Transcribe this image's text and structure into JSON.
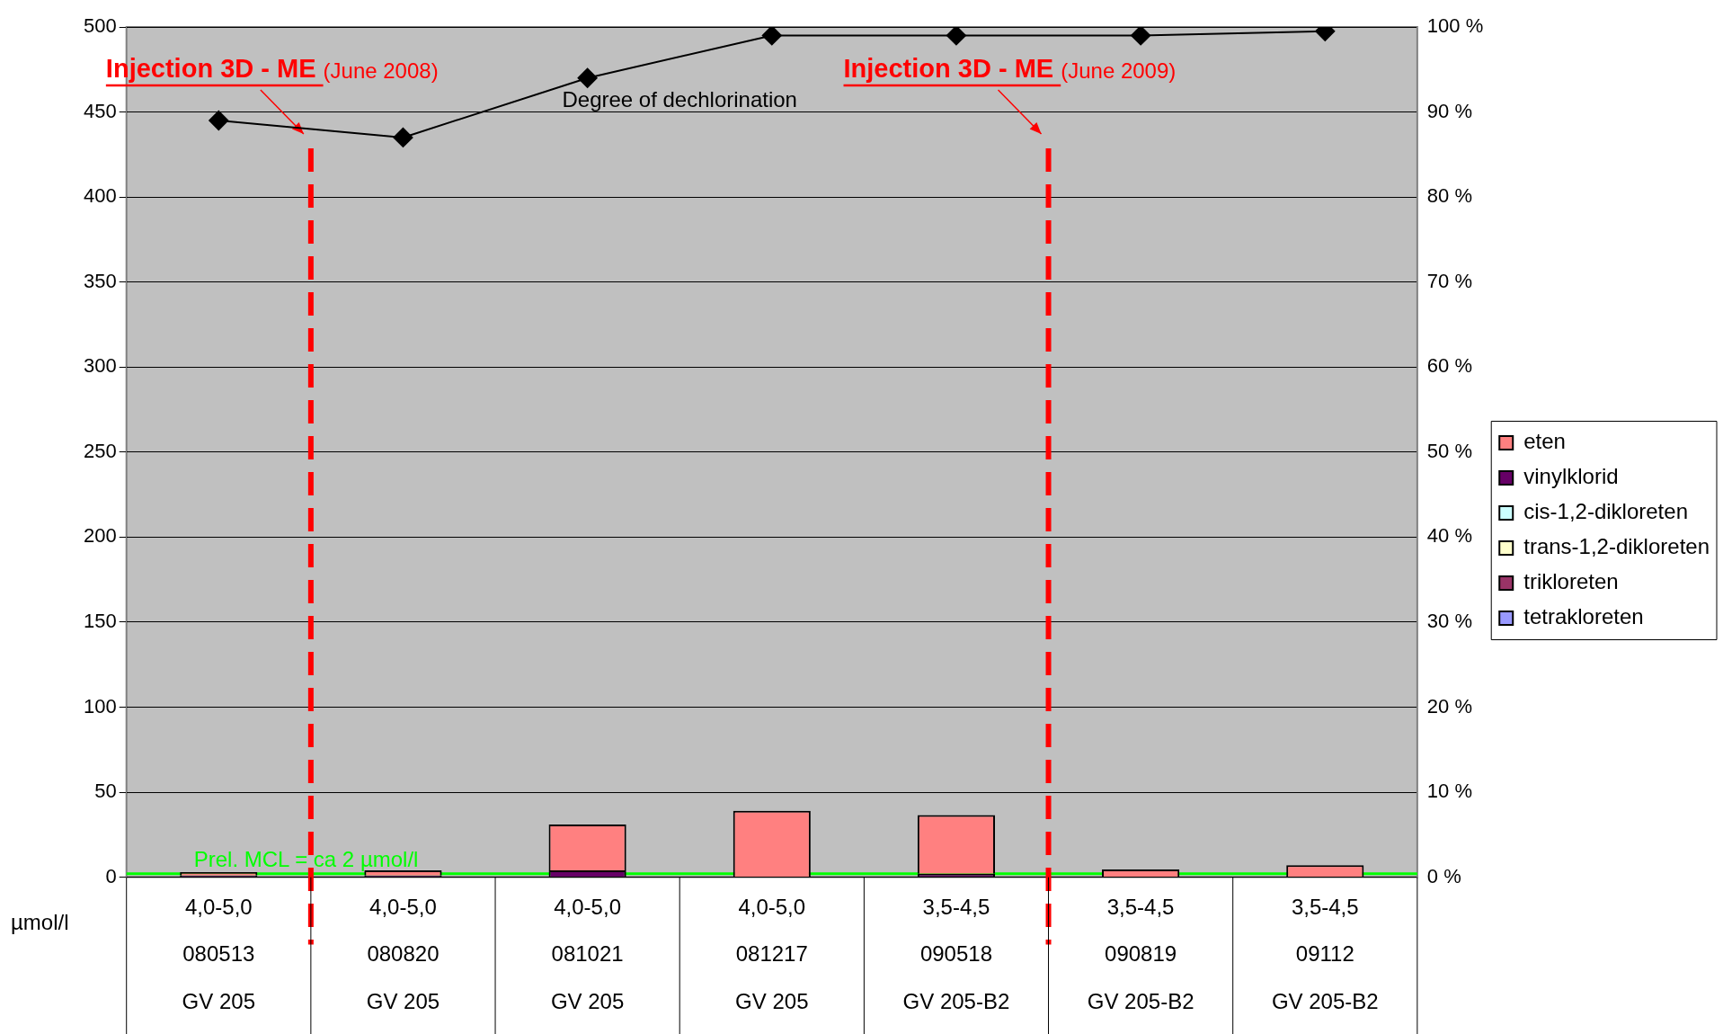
{
  "chart_data": {
    "type": "bar",
    "stacked": true,
    "categories": [
      "4,0-5,0\n080513\nGV 205",
      "4,0-5,0\n080820\nGV 205",
      "4,0-5,0\n081021\nGV 205",
      "4,0-5,0\n081217\nGV 205",
      "3,5-4,5\n090518\nGV 205-B2",
      "3,5-4,5\n090819\nGV 205-B2",
      "3,5-4,5\n09112\nGV 205-B2"
    ],
    "ylabel": "µmol/l",
    "series": [
      {
        "name": "tetrakloreten",
        "color": "#9999ff",
        "values": [
          0,
          0,
          0,
          0,
          0,
          0,
          0
        ]
      },
      {
        "name": "trikloreten",
        "color": "#993366",
        "values": [
          0,
          0,
          0,
          0,
          0,
          0,
          0
        ]
      },
      {
        "name": "trans-1,2-dikloreten",
        "color": "#ffffcc",
        "values": [
          0,
          0,
          0,
          0,
          0,
          0,
          0
        ]
      },
      {
        "name": "cis-1,2-dikloreten",
        "color": "#ccffff",
        "values": [
          0,
          0,
          0,
          0,
          0,
          0,
          0
        ]
      },
      {
        "name": "vinylklorid",
        "color": "#660066",
        "values": [
          1,
          1,
          4,
          0,
          2,
          0,
          0
        ]
      },
      {
        "name": "eten",
        "color": "#ff8080",
        "values": [
          2,
          3,
          27,
          39,
          34.5,
          4.5,
          7
        ]
      },
      {
        "name": "Degree of dechlorination",
        "type": "line",
        "axis": "y2",
        "color": "#000000",
        "marker": "diamond",
        "values": [
          89,
          87,
          94,
          99,
          99,
          99,
          99.5
        ]
      }
    ],
    "ylim": [
      0,
      500
    ],
    "yticks": [
      0,
      50,
      100,
      150,
      200,
      250,
      300,
      350,
      400,
      450,
      500
    ],
    "y2lim": [
      0,
      100
    ],
    "y2ticks": [
      {
        "value": 0,
        "label": "0 %"
      },
      {
        "value": 10,
        "label": "10 %"
      },
      {
        "value": 20,
        "label": "20 %"
      },
      {
        "value": 30,
        "label": "30 %"
      },
      {
        "value": 40,
        "label": "40 %"
      },
      {
        "value": 50,
        "label": "50 %"
      },
      {
        "value": 60,
        "label": "60 %"
      },
      {
        "value": 70,
        "label": "70 %"
      },
      {
        "value": 80,
        "label": "80 %"
      },
      {
        "value": 90,
        "label": "90 %"
      },
      {
        "value": 100,
        "label": "100 %"
      }
    ],
    "ref_lines": [
      {
        "axis": "y",
        "value": 2,
        "label": "Prel. MCL = ca 2 µmol/l",
        "color": "#00ff00"
      }
    ],
    "annotations": [
      "Injection 3D - ME (June 2008)",
      "Injection 3D - ME (June 2009)"
    ],
    "grid": "y",
    "legend": "right"
  }
}
